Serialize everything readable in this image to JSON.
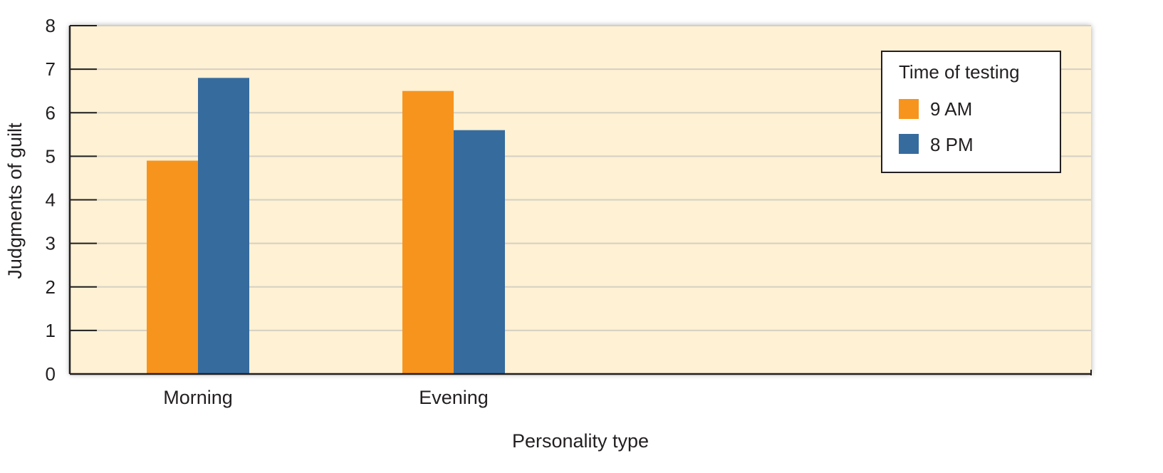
{
  "chart_data": {
    "type": "bar",
    "categories": [
      "Morning",
      "Evening"
    ],
    "series": [
      {
        "name": "9 AM",
        "values": [
          4.9,
          6.5
        ],
        "color": "#f7941d"
      },
      {
        "name": "8 PM",
        "values": [
          6.8,
          5.6
        ],
        "color": "#366b9e"
      }
    ],
    "xlabel": "Personality type",
    "ylabel": "Judgments of guilt",
    "ylim": [
      0,
      8
    ],
    "yticks": [
      "0",
      "1",
      "2",
      "3",
      "4",
      "5",
      "6",
      "7",
      "8"
    ],
    "grid": true,
    "legend": {
      "title": "Time of testing",
      "placement": "top-right"
    },
    "background": "#fef1d4"
  }
}
